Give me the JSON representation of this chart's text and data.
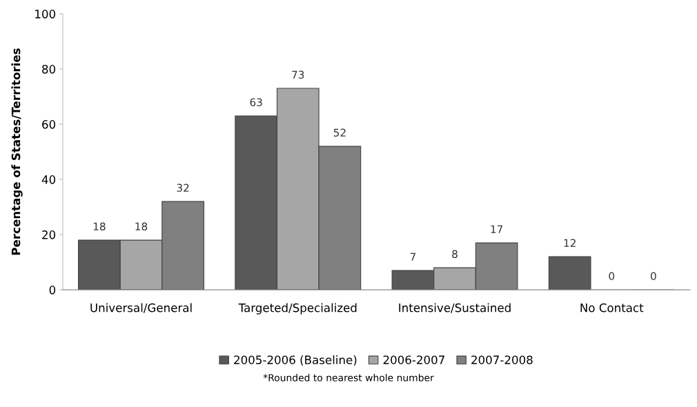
{
  "chart_data": {
    "type": "bar",
    "ylabel": "Percentage of States/Territories",
    "categories": [
      "Universal/General",
      "Targeted/Specialized",
      "Intensive/Sustained",
      "No Contact"
    ],
    "series": [
      {
        "name": "2005-2006 (Baseline)",
        "color": "#595959",
        "values": [
          18,
          63,
          7,
          12
        ]
      },
      {
        "name": "2006-2007",
        "color": "#a6a6a6",
        "values": [
          18,
          73,
          8,
          0
        ]
      },
      {
        "name": "2007-2008",
        "color": "#808080",
        "values": [
          32,
          52,
          17,
          0
        ]
      }
    ],
    "ylim": [
      0,
      100
    ],
    "yticks": [
      0,
      20,
      40,
      60,
      80,
      100
    ],
    "grid": false,
    "legend": "bottom",
    "data_labels": true,
    "annotations": [
      "*Rounded to nearest whole number"
    ]
  }
}
